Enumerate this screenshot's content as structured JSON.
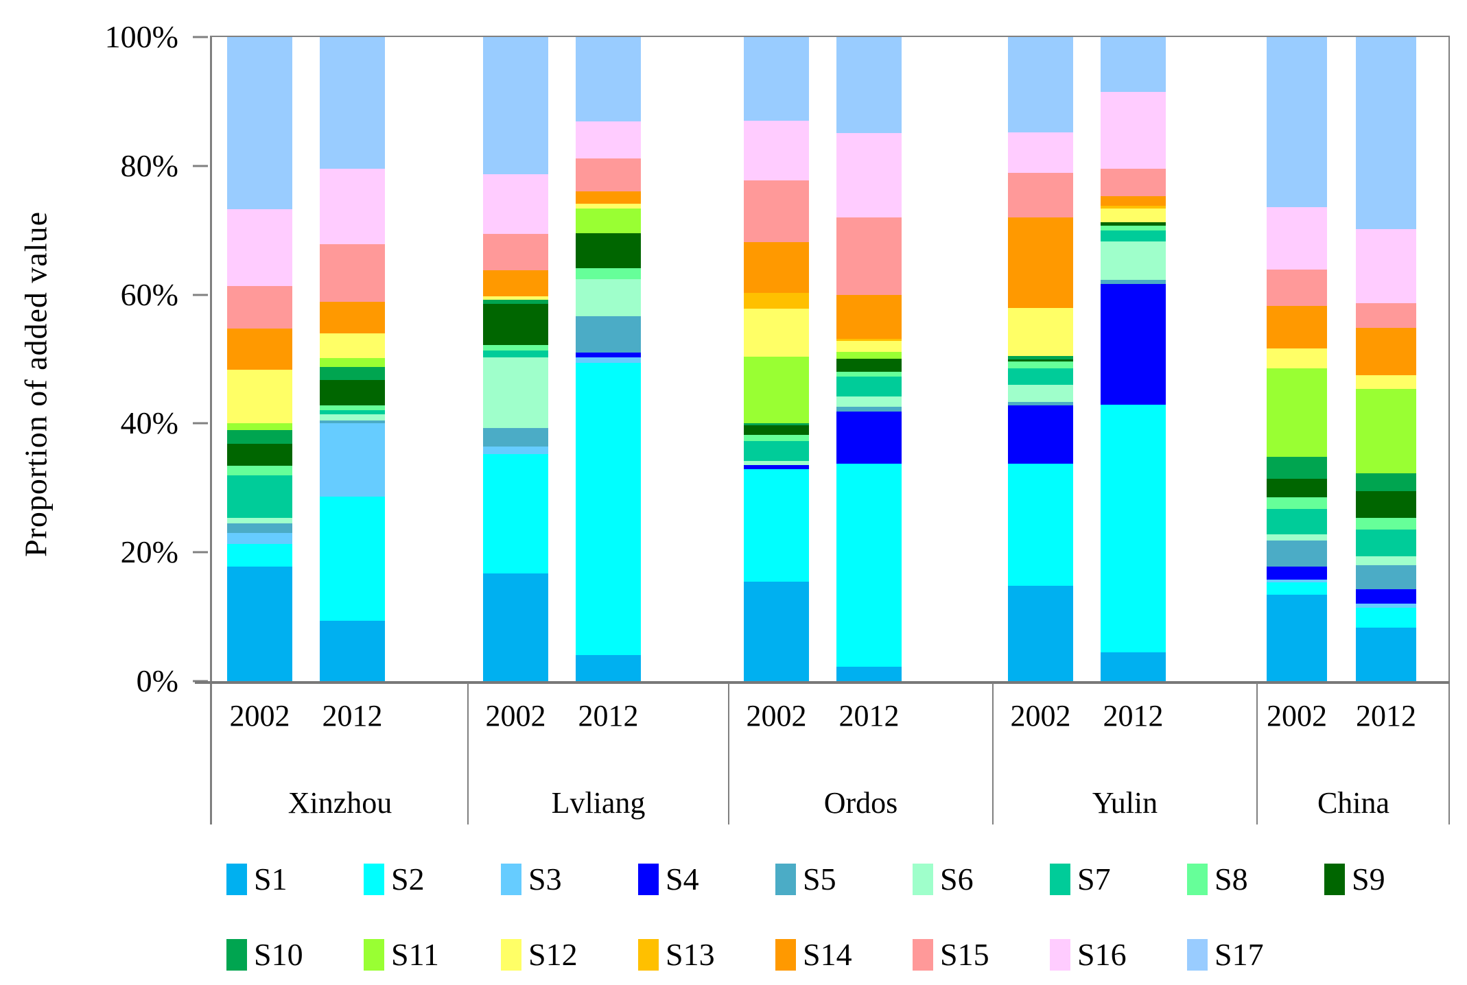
{
  "chart_data": {
    "type": "bar",
    "subtype": "stacked-100-percent",
    "title": "",
    "xlabel": "",
    "ylabel": "Proportion of added value",
    "unit": "percent",
    "ylim": [
      0,
      100
    ],
    "grid": false,
    "legend_position": "bottom",
    "legend_rows": [
      9,
      8
    ],
    "ytick_labels": [
      "0%",
      "20%",
      "40%",
      "60%",
      "80%",
      "100%"
    ],
    "groups": [
      "Xinzhou",
      "Lvliang",
      "Ordos",
      "Yulin",
      "China"
    ],
    "years": [
      "2002",
      "2012"
    ],
    "bar_order": [
      "Xinzhou 2002",
      "Xinzhou 2012",
      "Lvliang 2002",
      "Lvliang 2012",
      "Ordos 2002",
      "Ordos 2012",
      "Yulin 2002",
      "Yulin 2012",
      "China 2002",
      "China 2012"
    ],
    "series": [
      {
        "name": "S1",
        "color": "#00B0F0",
        "values": [
          17.8,
          9.4,
          16.7,
          4.0,
          15.4,
          2.2,
          14.8,
          4.5,
          13.4,
          8.3
        ]
      },
      {
        "name": "S2",
        "color": "#00FFFF",
        "values": [
          3.5,
          19.2,
          18.5,
          45.4,
          17.5,
          31.6,
          19.0,
          38.4,
          1.9,
          3.1
        ]
      },
      {
        "name": "S3",
        "color": "#66CCFF",
        "values": [
          1.7,
          11.4,
          1.2,
          0.9,
          0,
          0,
          0,
          0,
          0.5,
          0.6
        ]
      },
      {
        "name": "S4",
        "color": "#0000FF",
        "values": [
          0,
          0,
          0,
          0.7,
          0.6,
          8.1,
          9.0,
          18.8,
          2.0,
          2.3
        ]
      },
      {
        "name": "S5",
        "color": "#4BACC6",
        "values": [
          1.5,
          0.5,
          2.9,
          5.7,
          0,
          0.7,
          0.6,
          0.6,
          4.0,
          3.7
        ]
      },
      {
        "name": "S6",
        "color": "#9FFFCB",
        "values": [
          0.9,
          0.9,
          11.0,
          5.7,
          0.7,
          1.6,
          2.6,
          6.0,
          1.0,
          1.4
        ]
      },
      {
        "name": "S7",
        "color": "#00CC99",
        "values": [
          6.6,
          0.7,
          1.0,
          0,
          3.1,
          3.1,
          2.6,
          1.7,
          3.9,
          4.1
        ]
      },
      {
        "name": "S8",
        "color": "#66FF99",
        "values": [
          1.4,
          0.7,
          0.9,
          1.7,
          0.9,
          0.7,
          1.0,
          0.7,
          1.8,
          1.9
        ]
      },
      {
        "name": "S9",
        "color": "#006600",
        "values": [
          3.5,
          4.0,
          6.4,
          5.4,
          1.5,
          2.1,
          0.4,
          0.6,
          2.9,
          4.1
        ]
      },
      {
        "name": "S10",
        "color": "#00A550",
        "values": [
          2.1,
          2.0,
          0.6,
          0,
          0.4,
          0,
          0.5,
          0,
          3.4,
          2.8
        ]
      },
      {
        "name": "S11",
        "color": "#99FF33",
        "values": [
          1.0,
          1.4,
          0,
          3.9,
          10.3,
          1.0,
          0,
          0,
          13.8,
          13.1
        ]
      },
      {
        "name": "S12",
        "color": "#FFFF66",
        "values": [
          8.4,
          3.8,
          0.6,
          0.7,
          7.4,
          1.7,
          7.4,
          2.1,
          3.1,
          2.1
        ]
      },
      {
        "name": "S13",
        "color": "#FFC000",
        "values": [
          0,
          0,
          0,
          0,
          2.5,
          0.3,
          0,
          0.4,
          0,
          0
        ]
      },
      {
        "name": "S14",
        "color": "#FF9900",
        "values": [
          6.3,
          4.9,
          4.0,
          1.9,
          7.9,
          6.9,
          14.1,
          1.5,
          6.6,
          7.4
        ]
      },
      {
        "name": "S15",
        "color": "#FF9999",
        "values": [
          6.7,
          8.9,
          5.7,
          5.2,
          9.6,
          12.0,
          6.9,
          4.3,
          5.6,
          3.8
        ]
      },
      {
        "name": "S16",
        "color": "#FFCCFF",
        "values": [
          11.9,
          11.8,
          9.2,
          5.7,
          9.2,
          13.1,
          6.3,
          11.9,
          9.7,
          11.5
        ]
      },
      {
        "name": "S17",
        "color": "#99CCFF",
        "values": [
          26.7,
          20.4,
          21.3,
          13.1,
          13.0,
          14.9,
          14.8,
          8.5,
          26.4,
          29.8
        ]
      }
    ]
  }
}
